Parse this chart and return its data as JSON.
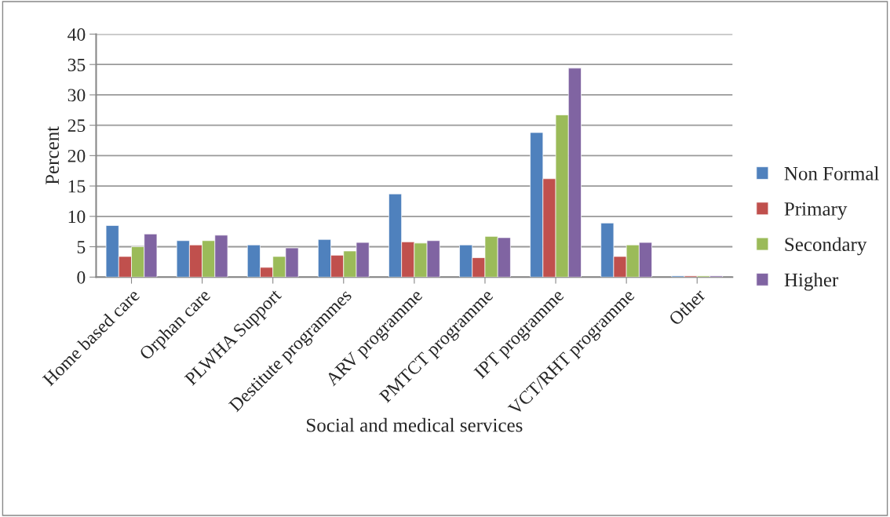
{
  "chart_data": {
    "type": "bar",
    "xlabel": "Social and medical services",
    "ylabel": "Percent",
    "categories": [
      "Home based care",
      "Orphan care",
      "PLWHA Support",
      "Destitute programmes",
      "ARV programme",
      "PMTCT programme",
      "IPT programme",
      "VCT/RHT programme",
      "Other"
    ],
    "series": [
      {
        "name": "Non Formal",
        "color": "#4f81bd",
        "values": [
          8.5,
          6.0,
          5.3,
          6.2,
          13.7,
          5.3,
          23.8,
          8.9,
          0.2
        ]
      },
      {
        "name": "Primary",
        "color": "#c0504d",
        "values": [
          3.4,
          5.3,
          1.6,
          3.6,
          5.8,
          3.2,
          16.2,
          3.4,
          0.2
        ]
      },
      {
        "name": "Secondary",
        "color": "#9bbb59",
        "values": [
          5.0,
          6.0,
          3.4,
          4.3,
          5.6,
          6.7,
          26.7,
          5.3,
          0.2
        ]
      },
      {
        "name": "Higher",
        "color": "#8064a2",
        "values": [
          7.1,
          6.9,
          4.8,
          5.7,
          6.0,
          6.5,
          34.4,
          5.7,
          0.2
        ]
      }
    ],
    "ylim": [
      0,
      40
    ],
    "yticks": [
      0,
      5,
      10,
      15,
      20,
      25,
      30,
      35,
      40
    ],
    "grid": "y",
    "legend": "right"
  }
}
